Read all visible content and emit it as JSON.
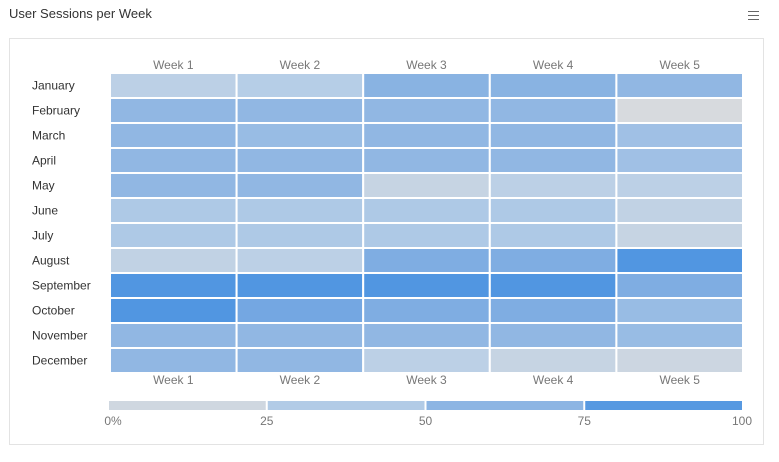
{
  "header": {
    "title": "User Sessions per Week",
    "menu_icon": "hamburger-menu-icon"
  },
  "chart_data": {
    "type": "heatmap",
    "title": "User Sessions per Week",
    "x_categories": [
      "Week 1",
      "Week 2",
      "Week 3",
      "Week 4",
      "Week 5"
    ],
    "y_categories": [
      "January",
      "February",
      "March",
      "April",
      "May",
      "June",
      "July",
      "August",
      "September",
      "October",
      "November",
      "December"
    ],
    "values": [
      [
        30,
        35,
        65,
        65,
        60
      ],
      [
        60,
        60,
        60,
        60,
        5
      ],
      [
        60,
        55,
        60,
        60,
        50
      ],
      [
        60,
        60,
        60,
        60,
        50
      ],
      [
        60,
        60,
        20,
        30,
        30
      ],
      [
        40,
        40,
        40,
        40,
        25
      ],
      [
        40,
        40,
        40,
        40,
        20
      ],
      [
        25,
        30,
        70,
        70,
        90
      ],
      [
        90,
        90,
        90,
        90,
        70
      ],
      [
        90,
        75,
        70,
        70,
        55
      ],
      [
        60,
        60,
        60,
        60,
        55
      ],
      [
        60,
        60,
        30,
        20,
        15
      ]
    ],
    "color_scale": {
      "min": 0,
      "max": 100,
      "ticks": [
        "0%",
        "25",
        "50",
        "75",
        "100"
      ],
      "stops": [
        "#dcdcdc",
        "#b8cfe7",
        "#87b1e2",
        "#3a8ae0"
      ]
    },
    "legend": "bottom"
  }
}
